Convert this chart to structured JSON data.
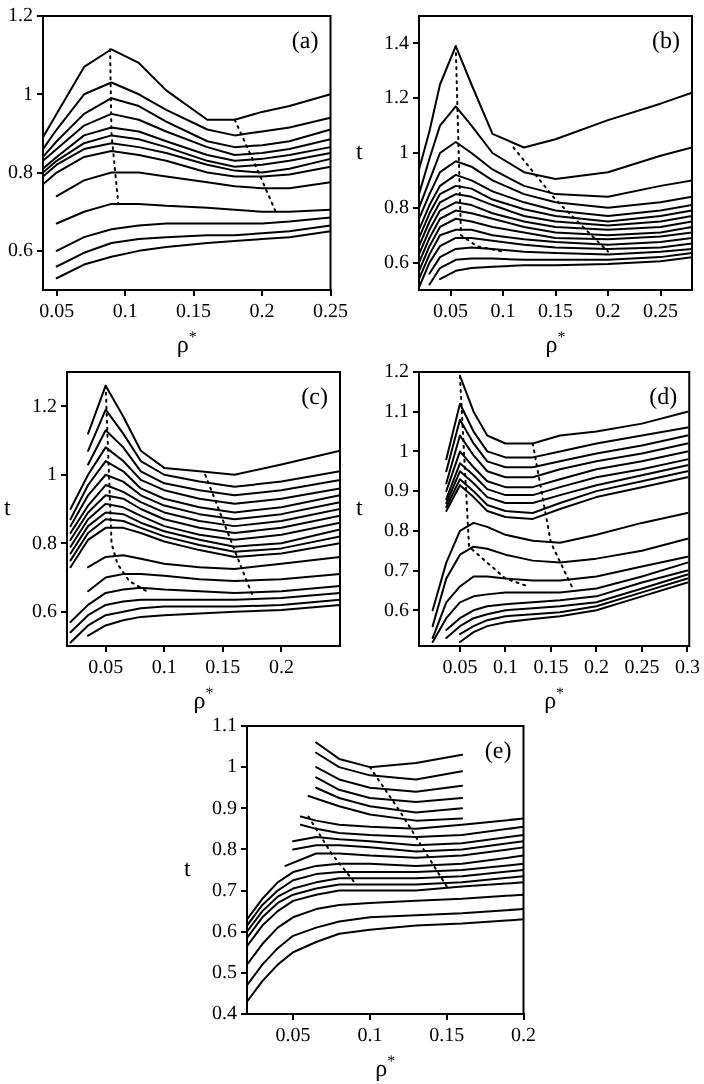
{
  "chart_data": [
    {
      "type": "line",
      "xlabel": "ρ$^{*}$",
      "annotations": [
        "(a)"
      ],
      "xlim": [
        0.04,
        0.25
      ],
      "ylim": [
        0.5,
        1.2
      ],
      "xticks": [
        0.05,
        0.1,
        0.15,
        0.2,
        0.25
      ],
      "yticks": [
        0.6,
        0.8,
        1,
        1.2
      ],
      "legend": false,
      "grid": false,
      "marker": "none",
      "line_style": "solid",
      "x": [
        0.04,
        0.05,
        0.07,
        0.09,
        0.11,
        0.13,
        0.16,
        0.18,
        0.2,
        0.22,
        0.25
      ],
      "series": [
        {
          "color": "#000000",
          "values": [
            0.89,
            0.95,
            1.07,
            1.115,
            1.08,
            1.01,
            0.935,
            0.935,
            0.955,
            0.97,
            1.0
          ]
        },
        {
          "color": "#000000",
          "values": [
            0.86,
            0.91,
            1.0,
            1.03,
            1.0,
            0.96,
            0.91,
            0.895,
            0.905,
            0.915,
            0.94
          ]
        },
        {
          "color": "#000000",
          "values": [
            0.84,
            0.88,
            0.95,
            0.99,
            0.97,
            0.93,
            0.88,
            0.865,
            0.87,
            0.88,
            0.91
          ]
        },
        {
          "color": "#000000",
          "values": [
            0.83,
            0.86,
            0.92,
            0.95,
            0.935,
            0.905,
            0.865,
            0.845,
            0.85,
            0.86,
            0.885
          ]
        },
        {
          "color": "#000000",
          "values": [
            0.81,
            0.84,
            0.895,
            0.915,
            0.905,
            0.88,
            0.845,
            0.83,
            0.835,
            0.845,
            0.865
          ]
        },
        {
          "color": "#000000",
          "values": [
            0.8,
            0.83,
            0.875,
            0.895,
            0.885,
            0.865,
            0.83,
            0.815,
            0.82,
            0.83,
            0.85
          ]
        },
        {
          "color": "#000000",
          "values": [
            0.79,
            0.82,
            0.86,
            0.875,
            0.865,
            0.85,
            0.82,
            0.805,
            0.8,
            0.81,
            0.835
          ]
        },
        {
          "color": "#000000",
          "values": [
            0.77,
            0.8,
            0.84,
            0.855,
            0.845,
            0.83,
            0.8,
            0.79,
            0.79,
            0.795,
            0.815
          ]
        },
        {
          "color": "#000000",
          "values": [
            null,
            0.74,
            0.78,
            0.8,
            0.8,
            0.79,
            0.775,
            0.765,
            0.76,
            0.76,
            0.775
          ]
        },
        {
          "color": "#000000",
          "values": [
            null,
            0.67,
            0.7,
            0.72,
            0.72,
            0.715,
            0.71,
            0.705,
            0.7,
            0.7,
            0.705
          ]
        },
        {
          "color": "#000000",
          "values": [
            null,
            0.6,
            0.635,
            0.655,
            0.665,
            0.67,
            0.67,
            0.67,
            0.67,
            0.675,
            0.685
          ]
        },
        {
          "color": "#000000",
          "values": [
            null,
            0.56,
            0.595,
            0.62,
            0.63,
            0.635,
            0.64,
            0.64,
            0.645,
            0.65,
            0.665
          ]
        },
        {
          "color": "#000000",
          "values": [
            null,
            0.53,
            0.565,
            0.585,
            0.6,
            0.61,
            0.62,
            0.625,
            0.63,
            0.635,
            0.65
          ]
        },
        {
          "color": "#000000",
          "line_style": "dotted",
          "x": [
            0.089,
            0.09,
            0.095
          ],
          "values": [
            1.115,
            0.9,
            0.72
          ]
        },
        {
          "color": "#000000",
          "line_style": "dotted",
          "x": [
            0.18,
            0.195,
            0.21
          ],
          "values": [
            0.935,
            0.82,
            0.7
          ]
        }
      ]
    },
    {
      "type": "line",
      "xlabel": "ρ$^{*}$",
      "ylabel": "t",
      "annotations": [
        "(b)"
      ],
      "xlim": [
        0.02,
        0.28
      ],
      "ylim": [
        0.5,
        1.5
      ],
      "xticks": [
        0.05,
        0.1,
        0.15,
        0.2,
        0.25
      ],
      "yticks": [
        0.6,
        0.8,
        1,
        1.2,
        1.4
      ],
      "legend": false,
      "grid": false,
      "marker": "none",
      "line_style": "solid",
      "x": [
        0.02,
        0.03,
        0.04,
        0.055,
        0.07,
        0.09,
        0.12,
        0.15,
        0.2,
        0.25,
        0.28
      ],
      "series": [
        {
          "color": "#000000",
          "values": [
            0.94,
            1.08,
            1.25,
            1.39,
            1.25,
            1.07,
            1.02,
            1.05,
            1.12,
            1.18,
            1.22
          ]
        },
        {
          "color": "#000000",
          "values": [
            0.85,
            0.98,
            1.1,
            1.17,
            1.1,
            1.0,
            0.93,
            0.905,
            0.93,
            0.99,
            1.02
          ]
        },
        {
          "color": "#000000",
          "values": [
            0.8,
            0.9,
            1.0,
            1.04,
            1.0,
            0.94,
            0.88,
            0.85,
            0.84,
            0.88,
            0.9
          ]
        },
        {
          "color": "#000000",
          "values": [
            0.76,
            0.85,
            0.93,
            0.97,
            0.95,
            0.9,
            0.85,
            0.82,
            0.8,
            0.82,
            0.84
          ]
        },
        {
          "color": "#000000",
          "values": [
            0.72,
            0.81,
            0.88,
            0.92,
            0.9,
            0.86,
            0.82,
            0.79,
            0.77,
            0.79,
            0.81
          ]
        },
        {
          "color": "#000000",
          "values": [
            0.69,
            0.78,
            0.85,
            0.88,
            0.87,
            0.83,
            0.795,
            0.77,
            0.75,
            0.77,
            0.79
          ]
        },
        {
          "color": "#000000",
          "values": [
            0.66,
            0.75,
            0.82,
            0.85,
            0.84,
            0.81,
            0.77,
            0.75,
            0.735,
            0.75,
            0.77
          ]
        },
        {
          "color": "#000000",
          "values": [
            0.63,
            0.72,
            0.79,
            0.82,
            0.81,
            0.78,
            0.75,
            0.73,
            0.72,
            0.73,
            0.75
          ]
        },
        {
          "color": "#000000",
          "values": [
            0.6,
            0.69,
            0.76,
            0.79,
            0.78,
            0.76,
            0.73,
            0.71,
            0.7,
            0.71,
            0.73
          ]
        },
        {
          "color": "#000000",
          "values": [
            0.57,
            0.66,
            0.73,
            0.76,
            0.75,
            0.73,
            0.71,
            0.69,
            0.685,
            0.695,
            0.71
          ]
        },
        {
          "color": "#000000",
          "values": [
            0.54,
            0.63,
            0.7,
            0.72,
            0.72,
            0.7,
            0.685,
            0.675,
            0.665,
            0.675,
            0.69
          ]
        },
        {
          "color": "#000000",
          "values": [
            0.51,
            0.6,
            0.66,
            0.69,
            0.69,
            0.68,
            0.665,
            0.655,
            0.65,
            0.655,
            0.67
          ]
        },
        {
          "color": "#000000",
          "values": [
            null,
            0.56,
            0.62,
            0.65,
            0.655,
            0.65,
            0.64,
            0.635,
            0.63,
            0.64,
            0.65
          ]
        },
        {
          "color": "#000000",
          "values": [
            null,
            0.52,
            0.58,
            0.61,
            0.615,
            0.615,
            0.61,
            0.61,
            0.61,
            0.62,
            0.635
          ]
        },
        {
          "color": "#000000",
          "values": [
            null,
            null,
            0.54,
            0.57,
            0.58,
            0.585,
            0.59,
            0.59,
            0.595,
            0.605,
            0.62
          ]
        },
        {
          "color": "#000000",
          "line_style": "dotted",
          "x": [
            0.055,
            0.06,
            0.075,
            0.1
          ],
          "values": [
            1.39,
            0.7,
            0.66,
            0.64
          ]
        },
        {
          "color": "#000000",
          "line_style": "dotted",
          "x": [
            0.11,
            0.15,
            0.2
          ],
          "values": [
            1.02,
            0.83,
            0.64
          ]
        }
      ]
    },
    {
      "type": "line",
      "xlabel": "ρ$^{*}$",
      "ylabel": "t",
      "annotations": [
        "(c)"
      ],
      "xlim": [
        0.017,
        0.25
      ],
      "ylim": [
        0.5,
        1.3
      ],
      "xticks": [
        0.05,
        0.1,
        0.15,
        0.2
      ],
      "yticks": [
        0.6,
        0.8,
        1,
        1.2
      ],
      "legend": false,
      "grid": false,
      "marker": "none",
      "line_style": "solid",
      "x": [
        0.02,
        0.035,
        0.05,
        0.065,
        0.08,
        0.1,
        0.13,
        0.16,
        0.2,
        0.25
      ],
      "series": [
        {
          "color": "#000000",
          "values": [
            null,
            1.12,
            1.26,
            1.17,
            1.07,
            1.02,
            1.01,
            1.0,
            1.03,
            1.07
          ]
        },
        {
          "color": "#000000",
          "values": [
            null,
            1.07,
            1.19,
            1.12,
            1.04,
            1.0,
            0.98,
            0.965,
            0.98,
            1.01
          ]
        },
        {
          "color": "#000000",
          "values": [
            null,
            1.03,
            1.13,
            1.08,
            1.01,
            0.975,
            0.955,
            0.94,
            0.955,
            0.985
          ]
        },
        {
          "color": "#000000",
          "values": [
            0.9,
            1.0,
            1.08,
            1.04,
            0.985,
            0.955,
            0.93,
            0.915,
            0.93,
            0.96
          ]
        },
        {
          "color": "#000000",
          "values": [
            0.87,
            0.97,
            1.04,
            1.01,
            0.96,
            0.93,
            0.905,
            0.89,
            0.905,
            0.94
          ]
        },
        {
          "color": "#000000",
          "values": [
            0.85,
            0.94,
            1.0,
            0.98,
            0.94,
            0.91,
            0.885,
            0.87,
            0.885,
            0.92
          ]
        },
        {
          "color": "#000000",
          "values": [
            0.83,
            0.91,
            0.97,
            0.95,
            0.92,
            0.89,
            0.865,
            0.85,
            0.865,
            0.9
          ]
        },
        {
          "color": "#000000",
          "values": [
            0.81,
            0.89,
            0.94,
            0.93,
            0.9,
            0.87,
            0.845,
            0.83,
            0.845,
            0.88
          ]
        },
        {
          "color": "#000000",
          "values": [
            0.79,
            0.87,
            0.915,
            0.905,
            0.88,
            0.85,
            0.825,
            0.81,
            0.825,
            0.86
          ]
        },
        {
          "color": "#000000",
          "values": [
            0.77,
            0.85,
            0.89,
            0.885,
            0.86,
            0.835,
            0.81,
            0.79,
            0.8,
            0.84
          ]
        },
        {
          "color": "#000000",
          "values": [
            0.75,
            0.83,
            0.87,
            0.865,
            0.845,
            0.82,
            0.795,
            0.775,
            0.785,
            0.82
          ]
        },
        {
          "color": "#000000",
          "values": [
            0.73,
            0.81,
            0.845,
            0.845,
            0.83,
            0.805,
            0.78,
            0.76,
            0.77,
            0.8
          ]
        },
        {
          "color": "#000000",
          "values": [
            null,
            0.73,
            0.76,
            0.765,
            0.755,
            0.74,
            0.73,
            0.725,
            0.74,
            0.76
          ]
        },
        {
          "color": "#000000",
          "values": [
            null,
            0.66,
            0.7,
            0.71,
            0.71,
            0.705,
            0.695,
            0.69,
            0.695,
            0.71
          ]
        },
        {
          "color": "#000000",
          "values": [
            0.57,
            0.62,
            0.655,
            0.665,
            0.67,
            0.665,
            0.66,
            0.655,
            0.66,
            0.675
          ]
        },
        {
          "color": "#000000",
          "values": [
            0.54,
            0.59,
            0.62,
            0.63,
            0.635,
            0.635,
            0.635,
            0.635,
            0.64,
            0.655
          ]
        },
        {
          "color": "#000000",
          "values": [
            0.51,
            0.56,
            0.59,
            0.6,
            0.61,
            0.615,
            0.615,
            0.615,
            0.62,
            0.635
          ]
        },
        {
          "color": "#000000",
          "values": [
            null,
            0.53,
            0.56,
            0.575,
            0.585,
            0.59,
            0.595,
            0.6,
            0.605,
            0.62
          ]
        },
        {
          "color": "#000000",
          "line_style": "dotted",
          "x": [
            0.05,
            0.055,
            0.06,
            0.07,
            0.085
          ],
          "values": [
            1.26,
            0.8,
            0.74,
            0.69,
            0.66
          ]
        },
        {
          "color": "#000000",
          "line_style": "dotted",
          "x": [
            0.135,
            0.16,
            0.175
          ],
          "values": [
            1.0,
            0.78,
            0.65
          ]
        }
      ]
    },
    {
      "type": "line",
      "xlabel": "ρ$^{*}$",
      "ylabel": "t",
      "annotations": [
        "(d)"
      ],
      "xlim": [
        0.005,
        0.302
      ],
      "ylim": [
        0.51,
        1.2
      ],
      "xticks": [
        0.05,
        0.1,
        0.15,
        0.2,
        0.25,
        0.3
      ],
      "yticks": [
        0.6,
        0.7,
        0.8,
        0.9,
        1,
        1.1,
        1.2
      ],
      "legend": false,
      "grid": false,
      "marker": "none",
      "line_style": "solid",
      "x": [
        0.02,
        0.035,
        0.05,
        0.065,
        0.08,
        0.1,
        0.13,
        0.16,
        0.2,
        0.25,
        0.3
      ],
      "series": [
        {
          "color": "#000000",
          "values": [
            null,
            null,
            1.19,
            1.1,
            1.04,
            1.02,
            1.02,
            1.04,
            1.05,
            1.07,
            1.1
          ]
        },
        {
          "color": "#000000",
          "values": [
            null,
            0.98,
            1.12,
            1.05,
            1.0,
            0.985,
            0.985,
            1.0,
            1.02,
            1.04,
            1.06
          ]
        },
        {
          "color": "#000000",
          "values": [
            null,
            0.95,
            1.08,
            1.02,
            0.975,
            0.96,
            0.96,
            0.975,
            0.995,
            1.015,
            1.04
          ]
        },
        {
          "color": "#000000",
          "values": [
            null,
            0.92,
            1.04,
            0.99,
            0.95,
            0.935,
            0.935,
            0.955,
            0.975,
            0.995,
            1.02
          ]
        },
        {
          "color": "#000000",
          "values": [
            null,
            0.9,
            1.0,
            0.96,
            0.925,
            0.91,
            0.91,
            0.93,
            0.955,
            0.975,
            1.0
          ]
        },
        {
          "color": "#000000",
          "values": [
            null,
            0.88,
            0.97,
            0.94,
            0.905,
            0.89,
            0.89,
            0.91,
            0.935,
            0.955,
            0.98
          ]
        },
        {
          "color": "#000000",
          "values": [
            null,
            0.87,
            0.95,
            0.92,
            0.885,
            0.87,
            0.87,
            0.89,
            0.915,
            0.94,
            0.965
          ]
        },
        {
          "color": "#000000",
          "values": [
            null,
            0.86,
            0.93,
            0.9,
            0.865,
            0.85,
            0.845,
            0.87,
            0.9,
            0.925,
            0.95
          ]
        },
        {
          "color": "#000000",
          "values": [
            null,
            0.85,
            0.915,
            0.885,
            0.85,
            0.835,
            0.83,
            0.855,
            0.885,
            0.91,
            0.935
          ]
        },
        {
          "color": "#000000",
          "values": [
            0.6,
            0.72,
            0.8,
            0.82,
            0.81,
            0.79,
            0.775,
            0.77,
            0.79,
            0.82,
            0.845
          ]
        },
        {
          "color": "#000000",
          "values": [
            0.56,
            0.68,
            0.74,
            0.76,
            0.755,
            0.74,
            0.725,
            0.72,
            0.73,
            0.75,
            0.78
          ]
        },
        {
          "color": "#000000",
          "values": [
            0.53,
            0.62,
            0.66,
            0.685,
            0.685,
            0.68,
            0.675,
            0.675,
            0.685,
            0.71,
            0.735
          ]
        },
        {
          "color": "#000000",
          "values": [
            0.52,
            0.58,
            0.62,
            0.635,
            0.64,
            0.645,
            0.645,
            0.645,
            0.655,
            0.685,
            0.72
          ]
        },
        {
          "color": "#000000",
          "values": [
            null,
            0.55,
            0.58,
            0.6,
            0.61,
            0.615,
            0.62,
            0.625,
            0.635,
            0.67,
            0.7
          ]
        },
        {
          "color": "#000000",
          "values": [
            null,
            0.53,
            0.56,
            0.58,
            0.59,
            0.6,
            0.605,
            0.61,
            0.62,
            0.655,
            0.69
          ]
        },
        {
          "color": "#000000",
          "values": [
            null,
            null,
            0.54,
            0.56,
            0.575,
            0.585,
            0.59,
            0.595,
            0.61,
            0.645,
            0.68
          ]
        },
        {
          "color": "#000000",
          "values": [
            null,
            null,
            0.52,
            0.545,
            0.56,
            0.57,
            0.578,
            0.585,
            0.6,
            0.635,
            0.67
          ]
        },
        {
          "color": "#000000",
          "line_style": "dotted",
          "x": [
            0.05,
            0.06,
            0.1,
            0.125
          ],
          "values": [
            1.19,
            0.76,
            0.68,
            0.66
          ]
        },
        {
          "color": "#000000",
          "line_style": "dotted",
          "x": [
            0.13,
            0.15,
            0.175
          ],
          "values": [
            1.02,
            0.77,
            0.65
          ]
        }
      ]
    },
    {
      "type": "line",
      "xlabel": "ρ$^{*}$",
      "ylabel": "t",
      "annotations": [
        "(e)"
      ],
      "xlim": [
        0.02,
        0.2
      ],
      "ylim": [
        0.4,
        1.1
      ],
      "xticks": [
        0.05,
        0.1,
        0.15,
        0.2
      ],
      "yticks": [
        0.4,
        0.5,
        0.6,
        0.7,
        0.8,
        0.9,
        1,
        1.1
      ],
      "legend": false,
      "grid": false,
      "marker": "none",
      "line_style": "solid",
      "x": [
        0.02,
        0.03,
        0.04,
        0.05,
        0.065,
        0.08,
        0.1,
        0.13,
        0.16,
        0.2
      ],
      "series": [
        {
          "color": "#000000",
          "x": [
            0.065,
            0.08,
            0.1,
            0.13,
            0.16
          ],
          "values": [
            1.06,
            1.02,
            1.0,
            1.01,
            1.03
          ]
        },
        {
          "color": "#000000",
          "x": [
            0.065,
            0.08,
            0.1,
            0.13,
            0.16
          ],
          "values": [
            1.035,
            1.0,
            0.98,
            0.97,
            0.99
          ]
        },
        {
          "color": "#000000",
          "x": [
            0.065,
            0.08,
            0.1,
            0.13,
            0.16
          ],
          "values": [
            1.0,
            0.97,
            0.95,
            0.94,
            0.955
          ]
        },
        {
          "color": "#000000",
          "x": [
            0.065,
            0.08,
            0.1,
            0.13,
            0.16
          ],
          "values": [
            0.975,
            0.945,
            0.925,
            0.915,
            0.925
          ]
        },
        {
          "color": "#000000",
          "x": [
            0.065,
            0.08,
            0.1,
            0.13,
            0.16
          ],
          "values": [
            0.95,
            0.925,
            0.905,
            0.89,
            0.9
          ]
        },
        {
          "color": "#000000",
          "x": [
            0.06,
            0.08,
            0.1,
            0.13,
            0.16
          ],
          "values": [
            0.93,
            0.905,
            0.885,
            0.87,
            0.875
          ]
        },
        {
          "color": "#000000",
          "x": [
            0.055,
            0.065,
            0.08,
            0.1,
            0.13,
            0.16,
            0.2
          ],
          "values": [
            0.88,
            0.87,
            0.86,
            0.855,
            0.85,
            0.86,
            0.875
          ]
        },
        {
          "color": "#000000",
          "x": [
            0.055,
            0.065,
            0.08,
            0.1,
            0.13,
            0.16,
            0.2
          ],
          "values": [
            0.86,
            0.85,
            0.84,
            0.835,
            0.83,
            0.835,
            0.855
          ]
        },
        {
          "color": "#000000",
          "x": [
            0.05,
            0.065,
            0.08,
            0.1,
            0.13,
            0.16,
            0.2
          ],
          "values": [
            0.82,
            0.83,
            0.825,
            0.82,
            0.81,
            0.815,
            0.835
          ]
        },
        {
          "color": "#000000",
          "x": [
            0.05,
            0.065,
            0.08,
            0.1,
            0.13,
            0.16,
            0.2
          ],
          "values": [
            0.8,
            0.81,
            0.81,
            0.805,
            0.795,
            0.8,
            0.82
          ]
        },
        {
          "color": "#000000",
          "x": [
            0.045,
            0.065,
            0.08,
            0.1,
            0.13,
            0.16,
            0.2
          ],
          "values": [
            0.76,
            0.79,
            0.79,
            0.785,
            0.78,
            0.785,
            0.805
          ]
        },
        {
          "color": "#000000",
          "values": [
            0.63,
            0.68,
            0.72,
            0.745,
            0.76,
            0.765,
            0.765,
            0.76,
            0.765,
            0.785
          ]
        },
        {
          "color": "#000000",
          "values": [
            0.615,
            0.665,
            0.7,
            0.725,
            0.74,
            0.745,
            0.745,
            0.745,
            0.75,
            0.765
          ]
        },
        {
          "color": "#000000",
          "values": [
            0.6,
            0.65,
            0.685,
            0.705,
            0.72,
            0.73,
            0.73,
            0.73,
            0.735,
            0.75
          ]
        },
        {
          "color": "#000000",
          "values": [
            0.585,
            0.635,
            0.67,
            0.69,
            0.705,
            0.715,
            0.715,
            0.715,
            0.72,
            0.735
          ]
        },
        {
          "color": "#000000",
          "values": [
            0.565,
            0.615,
            0.65,
            0.675,
            0.69,
            0.7,
            0.7,
            0.7,
            0.71,
            0.72
          ]
        },
        {
          "color": "#000000",
          "values": [
            0.52,
            0.57,
            0.61,
            0.635,
            0.655,
            0.665,
            0.67,
            0.675,
            0.68,
            0.69
          ]
        },
        {
          "color": "#000000",
          "values": [
            0.47,
            0.52,
            0.56,
            0.59,
            0.61,
            0.625,
            0.635,
            0.64,
            0.645,
            0.655
          ]
        },
        {
          "color": "#000000",
          "values": [
            0.43,
            0.48,
            0.52,
            0.55,
            0.575,
            0.595,
            0.605,
            0.615,
            0.62,
            0.63
          ]
        },
        {
          "color": "#000000",
          "line_style": "dotted",
          "x": [
            0.06,
            0.075,
            0.09
          ],
          "values": [
            0.88,
            0.79,
            0.72
          ]
        },
        {
          "color": "#000000",
          "line_style": "dotted",
          "x": [
            0.1,
            0.12,
            0.15
          ],
          "values": [
            1.0,
            0.89,
            0.71
          ]
        }
      ]
    }
  ]
}
